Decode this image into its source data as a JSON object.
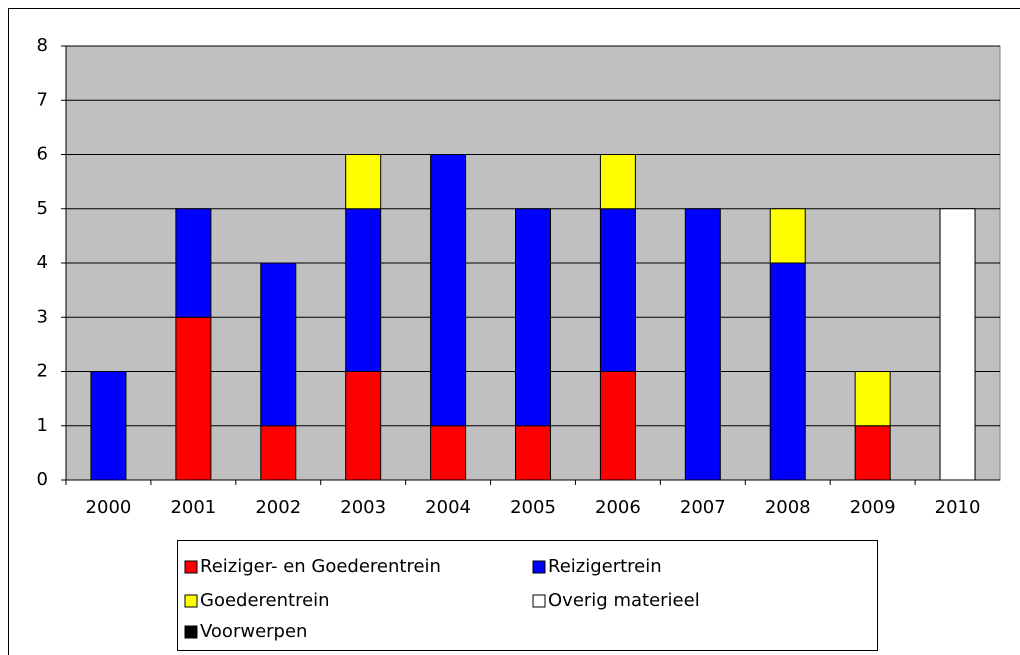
{
  "chart_data": {
    "type": "bar",
    "stacked": true,
    "categories": [
      "2000",
      "2001",
      "2002",
      "2003",
      "2004",
      "2005",
      "2006",
      "2007",
      "2008",
      "2009",
      "2010"
    ],
    "series": [
      {
        "name": "Reiziger- en Goederentrein",
        "color": "#ff0000",
        "values": [
          0,
          3,
          1,
          2,
          1,
          1,
          2,
          0,
          0,
          1,
          0
        ]
      },
      {
        "name": "Reizigertrein",
        "color": "#0000ff",
        "values": [
          2,
          2,
          3,
          3,
          5,
          4,
          3,
          5,
          4,
          0,
          0
        ]
      },
      {
        "name": "Goederentrein",
        "color": "#ffff00",
        "values": [
          0,
          0,
          0,
          1,
          0,
          0,
          1,
          0,
          1,
          1,
          0
        ]
      },
      {
        "name": "Overig materieel",
        "color": "#ffffff",
        "values": [
          0,
          0,
          0,
          0,
          0,
          0,
          0,
          0,
          0,
          0,
          5
        ]
      },
      {
        "name": "Voorwerpen",
        "color": "#000000",
        "values": [
          0,
          0,
          0,
          0,
          0,
          0,
          0,
          0,
          0,
          0,
          0
        ]
      }
    ],
    "ylim": [
      0,
      8
    ],
    "yticks": [
      0,
      1,
      2,
      3,
      4,
      5,
      6,
      7,
      8
    ],
    "grid": true,
    "legend": "bottom"
  }
}
